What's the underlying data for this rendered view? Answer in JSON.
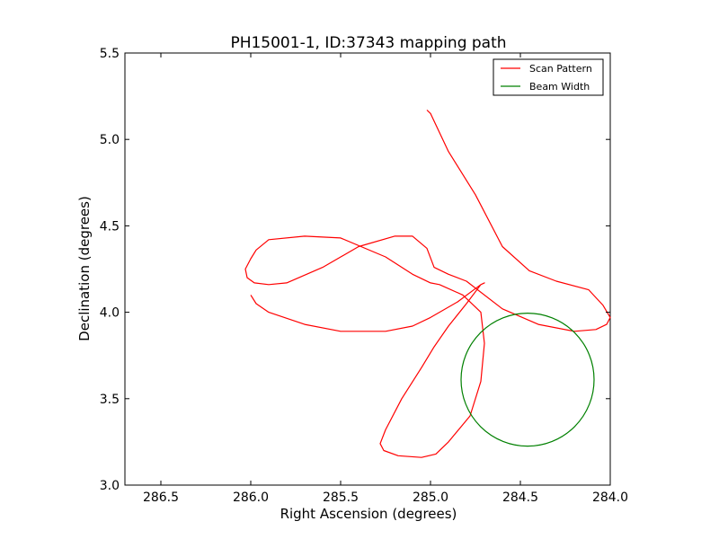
{
  "chart_data": {
    "type": "line",
    "title": "PH15001-1, ID:37343 mapping path",
    "xlabel": "Right Ascension (degrees)",
    "ylabel": "Declination (degrees)",
    "xlim": [
      286.7,
      284.0
    ],
    "ylim": [
      3.0,
      5.5
    ],
    "x_inverted": true,
    "xticks": [
      "286.5",
      "286.0",
      "285.5",
      "285.0",
      "284.5",
      "284.0"
    ],
    "xtick_values": [
      286.5,
      286.0,
      285.5,
      285.0,
      284.5,
      284.0
    ],
    "yticks": [
      "3.0",
      "3.5",
      "4.0",
      "4.5",
      "5.0",
      "5.5"
    ],
    "ytick_values": [
      3.0,
      3.5,
      4.0,
      4.5,
      5.0,
      5.5
    ],
    "grid": false,
    "legend_position": "top-right",
    "series": [
      {
        "name": "Scan Pattern",
        "color": "#ff0000",
        "x": [
          286.0,
          285.97,
          285.9,
          285.7,
          285.5,
          285.25,
          285.1,
          285.0,
          284.85,
          284.72,
          284.7,
          284.72,
          284.8,
          284.9,
          284.98,
          285.05,
          285.16,
          285.25,
          285.28,
          285.26,
          285.18,
          285.05,
          284.97,
          284.9,
          284.78,
          284.72,
          284.7,
          284.72,
          284.82,
          284.95,
          285.0,
          285.1,
          285.25,
          285.5,
          285.7,
          285.9,
          285.97,
          286.0,
          286.03,
          286.02,
          285.98,
          285.9,
          285.8,
          285.6,
          285.4,
          285.2,
          285.1,
          285.02,
          284.98,
          284.9,
          284.8,
          284.6,
          284.4,
          284.2,
          284.08,
          284.02,
          284.0,
          284.04,
          284.12,
          284.3,
          284.45,
          284.6,
          284.75,
          284.9,
          285.0,
          285.02
        ],
        "y": [
          4.1,
          4.05,
          4.0,
          3.93,
          3.89,
          3.89,
          3.92,
          3.97,
          4.06,
          4.16,
          4.17,
          4.16,
          4.05,
          3.92,
          3.8,
          3.68,
          3.5,
          3.32,
          3.24,
          3.2,
          3.17,
          3.16,
          3.18,
          3.25,
          3.4,
          3.6,
          3.82,
          4.0,
          4.1,
          4.16,
          4.17,
          4.22,
          4.32,
          4.43,
          4.44,
          4.42,
          4.36,
          4.31,
          4.25,
          4.2,
          4.17,
          4.16,
          4.17,
          4.26,
          4.38,
          4.44,
          4.44,
          4.37,
          4.26,
          4.22,
          4.18,
          4.02,
          3.93,
          3.89,
          3.9,
          3.93,
          3.97,
          4.04,
          4.13,
          4.18,
          4.24,
          4.38,
          4.68,
          4.93,
          5.15,
          5.17
        ]
      },
      {
        "name": "Beam Width",
        "color": "#008000",
        "shape": "circle",
        "center": [
          284.46,
          3.61
        ],
        "radius_deg": 0.37
      }
    ]
  }
}
